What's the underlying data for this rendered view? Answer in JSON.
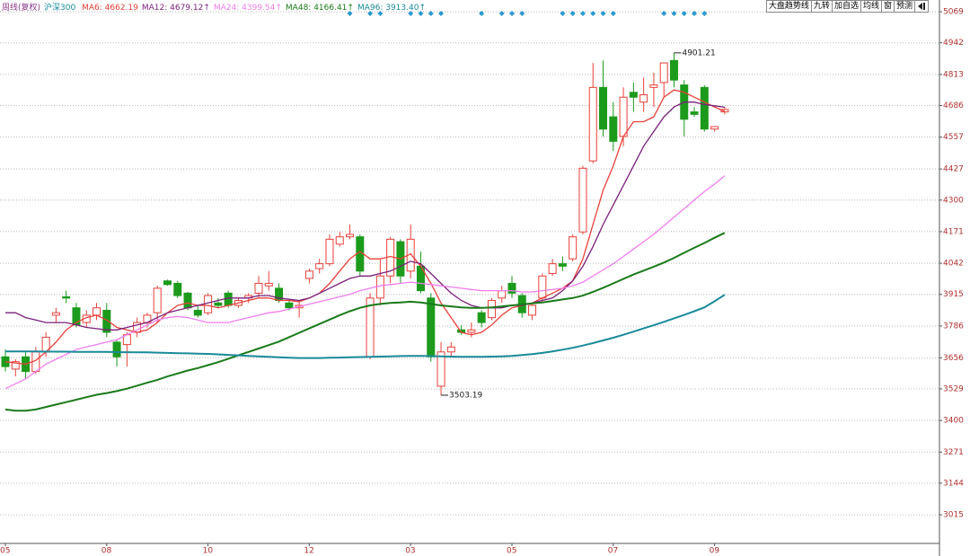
{
  "header": {
    "period": "周线(复权)",
    "symbol": "沪深300"
  },
  "toolbar": [
    "大盘趋势线",
    "九转",
    "加自选",
    "均线",
    "窗",
    "预测"
  ],
  "chart_data": {
    "type": "candlestick",
    "categories": [
      "05",
      null,
      null,
      null,
      null,
      null,
      null,
      null,
      null,
      null,
      "08",
      null,
      null,
      null,
      null,
      null,
      null,
      null,
      null,
      null,
      "10",
      null,
      null,
      null,
      null,
      null,
      null,
      null,
      null,
      null,
      "12",
      null,
      null,
      null,
      null,
      null,
      null,
      null,
      null,
      null,
      "03",
      null,
      null,
      null,
      null,
      null,
      null,
      null,
      null,
      null,
      "05",
      null,
      null,
      null,
      null,
      null,
      null,
      null,
      null,
      null,
      "07",
      null,
      null,
      null,
      null,
      null,
      null,
      null,
      null,
      null,
      "09",
      null
    ],
    "open": [
      3660,
      3610,
      3660,
      3600,
      3680,
      3830,
      3905,
      3860,
      3800,
      3830,
      3850,
      3720,
      3710,
      3760,
      3800,
      3840,
      3970,
      3960,
      3920,
      3850,
      3840,
      3880,
      3920,
      3870,
      3900,
      3920,
      3950,
      3940,
      3880,
      3860,
      3980,
      4020,
      4040,
      4120,
      4150,
      4150,
      3660,
      3900,
      3990,
      4130,
      4010,
      4030,
      3900,
      3540,
      3680,
      3770,
      3760,
      3840,
      3820,
      3900,
      3960,
      3910,
      3830,
      3900,
      4000,
      4040,
      4060,
      4170,
      4460,
      4760,
      4640,
      4560,
      4740,
      4700,
      4760,
      4780,
      4870,
      4770,
      4660,
      4760,
      4590,
      4660
    ],
    "high": [
      3690,
      3650,
      3680,
      3700,
      3760,
      3860,
      3930,
      3880,
      3850,
      3880,
      3880,
      3730,
      3760,
      3820,
      3840,
      3950,
      3975,
      3970,
      3925,
      3870,
      3920,
      3900,
      3930,
      3900,
      3920,
      3990,
      4010,
      3960,
      3890,
      3890,
      4020,
      4060,
      4160,
      4170,
      4200,
      4160,
      3920,
      4060,
      4150,
      4140,
      4200,
      4090,
      3920,
      3720,
      3720,
      3790,
      3800,
      3850,
      3900,
      3950,
      3990,
      3920,
      3880,
      4000,
      4060,
      4070,
      4160,
      4440,
      4860,
      4870,
      4700,
      4760,
      4780,
      4800,
      4820,
      4860,
      4901.21,
      4790,
      4680,
      4770,
      4600,
      4680
    ],
    "low": [
      3600,
      3580,
      3570,
      3590,
      3660,
      3800,
      3880,
      3780,
      3780,
      3810,
      3740,
      3620,
      3620,
      3740,
      3780,
      3800,
      3950,
      3900,
      3850,
      3820,
      3830,
      3860,
      3860,
      3860,
      3880,
      3900,
      3930,
      3880,
      3850,
      3820,
      3960,
      4000,
      4030,
      4110,
      4140,
      3990,
      3650,
      3870,
      3960,
      3960,
      3980,
      3920,
      3640,
      3503.19,
      3660,
      3750,
      3740,
      3780,
      3810,
      3880,
      3900,
      3820,
      3810,
      3880,
      3990,
      4010,
      4050,
      4160,
      4450,
      4560,
      4500,
      4520,
      4660,
      4660,
      4680,
      4720,
      4760,
      4560,
      4640,
      4580,
      4580,
      4650
    ],
    "close": [
      3620,
      3640,
      3600,
      3680,
      3740,
      3840,
      3900,
      3790,
      3830,
      3860,
      3760,
      3660,
      3750,
      3800,
      3830,
      3940,
      3955,
      3910,
      3860,
      3830,
      3910,
      3870,
      3870,
      3890,
      3910,
      3960,
      3960,
      3890,
      3860,
      3870,
      4010,
      4040,
      4140,
      4150,
      4160,
      4010,
      3900,
      3990,
      4140,
      3990,
      4140,
      3930,
      3660,
      3680,
      3700,
      3760,
      3770,
      3800,
      3890,
      3930,
      3920,
      3840,
      3870,
      3990,
      4040,
      4030,
      4150,
      4430,
      4760,
      4590,
      4540,
      4720,
      4720,
      4730,
      4770,
      4860,
      4790,
      4630,
      4650,
      4590,
      4600,
      4670
    ],
    "up_color": "#e8403a",
    "down_color": "#1c9a1c",
    "moving_averages": [
      {
        "name": "MA6: 4662.19",
        "color": "#e8403a",
        "values": [
          3640,
          3635,
          3630,
          3645,
          3680,
          3720,
          3770,
          3800,
          3820,
          3830,
          3810,
          3780,
          3770,
          3760,
          3770,
          3800,
          3840,
          3870,
          3880,
          3870,
          3870,
          3860,
          3870,
          3880,
          3890,
          3900,
          3900,
          3890,
          3890,
          3885,
          3900,
          3920,
          3960,
          4010,
          4060,
          4090,
          4060,
          4060,
          4070,
          4060,
          4080,
          4030,
          3960,
          3880,
          3820,
          3760,
          3750,
          3760,
          3790,
          3830,
          3860,
          3870,
          3880,
          3900,
          3920,
          3940,
          3970,
          4060,
          4200,
          4340,
          4440,
          4560,
          4620,
          4620,
          4640,
          4720,
          4750,
          4740,
          4720,
          4700,
          4680,
          4662.19
        ]
      },
      {
        "name": "MA12: 4679.12↑",
        "color": "#7a1f7a",
        "values": [
          3840,
          3840,
          3820,
          3810,
          3800,
          3800,
          3800,
          3790,
          3780,
          3775,
          3770,
          3770,
          3780,
          3790,
          3800,
          3820,
          3840,
          3850,
          3860,
          3870,
          3880,
          3890,
          3900,
          3900,
          3900,
          3910,
          3910,
          3900,
          3895,
          3890,
          3900,
          3920,
          3940,
          3960,
          3980,
          3990,
          3990,
          4000,
          4010,
          4030,
          4050,
          4040,
          4000,
          3960,
          3920,
          3890,
          3870,
          3860,
          3860,
          3860,
          3870,
          3870,
          3880,
          3890,
          3900,
          3930,
          3970,
          4030,
          4110,
          4200,
          4280,
          4360,
          4440,
          4520,
          4580,
          4640,
          4680,
          4700,
          4700,
          4690,
          4685,
          4679.12
        ]
      },
      {
        "name": "MA24: 4399.54↑",
        "color": "#f07ef0",
        "values": [
          3530,
          3550,
          3570,
          3600,
          3630,
          3650,
          3670,
          3690,
          3700,
          3710,
          3720,
          3730,
          3750,
          3770,
          3790,
          3810,
          3820,
          3825,
          3820,
          3810,
          3800,
          3800,
          3800,
          3810,
          3820,
          3830,
          3840,
          3845,
          3855,
          3865,
          3875,
          3885,
          3895,
          3905,
          3915,
          3930,
          3940,
          3950,
          3955,
          3960,
          3965,
          3960,
          3955,
          3950,
          3945,
          3940,
          3935,
          3930,
          3930,
          3930,
          3930,
          3925,
          3925,
          3930,
          3935,
          3940,
          3950,
          3965,
          3990,
          4015,
          4040,
          4070,
          4100,
          4130,
          4160,
          4195,
          4230,
          4265,
          4300,
          4335,
          4365,
          4399.54
        ]
      },
      {
        "name": "MA48: 4166.41↑",
        "color": "#1a7a1a",
        "values": [
          3445,
          3440,
          3440,
          3445,
          3455,
          3465,
          3475,
          3485,
          3495,
          3505,
          3512,
          3520,
          3530,
          3542,
          3554,
          3566,
          3580,
          3592,
          3604,
          3614,
          3626,
          3638,
          3652,
          3666,
          3680,
          3694,
          3708,
          3722,
          3740,
          3758,
          3776,
          3794,
          3812,
          3830,
          3846,
          3860,
          3870,
          3876,
          3880,
          3882,
          3885,
          3882,
          3876,
          3870,
          3866,
          3862,
          3860,
          3860,
          3862,
          3866,
          3870,
          3874,
          3878,
          3882,
          3888,
          3894,
          3900,
          3910,
          3925,
          3942,
          3960,
          3978,
          3996,
          4012,
          4028,
          4045,
          4064,
          4085,
          4105,
          4125,
          4146,
          4166.41
        ]
      },
      {
        "name": "MA96: 3913.40↑",
        "color": "#1a8a9a",
        "values": [
          3682,
          3682,
          3682,
          3682,
          3681,
          3681,
          3681,
          3680,
          3680,
          3680,
          3680,
          3679,
          3679,
          3678,
          3678,
          3677,
          3676,
          3675,
          3674,
          3673,
          3672,
          3670,
          3668,
          3666,
          3664,
          3662,
          3660,
          3658,
          3656,
          3655,
          3655,
          3655,
          3656,
          3657,
          3658,
          3659,
          3660,
          3661,
          3662,
          3663,
          3664,
          3664,
          3663,
          3662,
          3661,
          3660,
          3660,
          3660,
          3661,
          3662,
          3664,
          3667,
          3671,
          3676,
          3682,
          3689,
          3697,
          3706,
          3716,
          3727,
          3738,
          3750,
          3763,
          3776,
          3789,
          3803,
          3817,
          3831,
          3846,
          3862,
          3887,
          3913.4
        ]
      }
    ],
    "signals": [
      34,
      36,
      37,
      40,
      41,
      42,
      43,
      47,
      49,
      50,
      51,
      55,
      56,
      57,
      58,
      59,
      60,
      65,
      66,
      67,
      68,
      69
    ],
    "signal_color": "#2a9ad0",
    "ylim": [
      2898,
      5117
    ],
    "yticks": [
      3015,
      3144,
      3271,
      3400,
      3529,
      3656,
      3786,
      3915,
      4042,
      4171,
      4300,
      4427,
      4557,
      4686,
      4813,
      4942,
      5069
    ],
    "grid": true
  }
}
